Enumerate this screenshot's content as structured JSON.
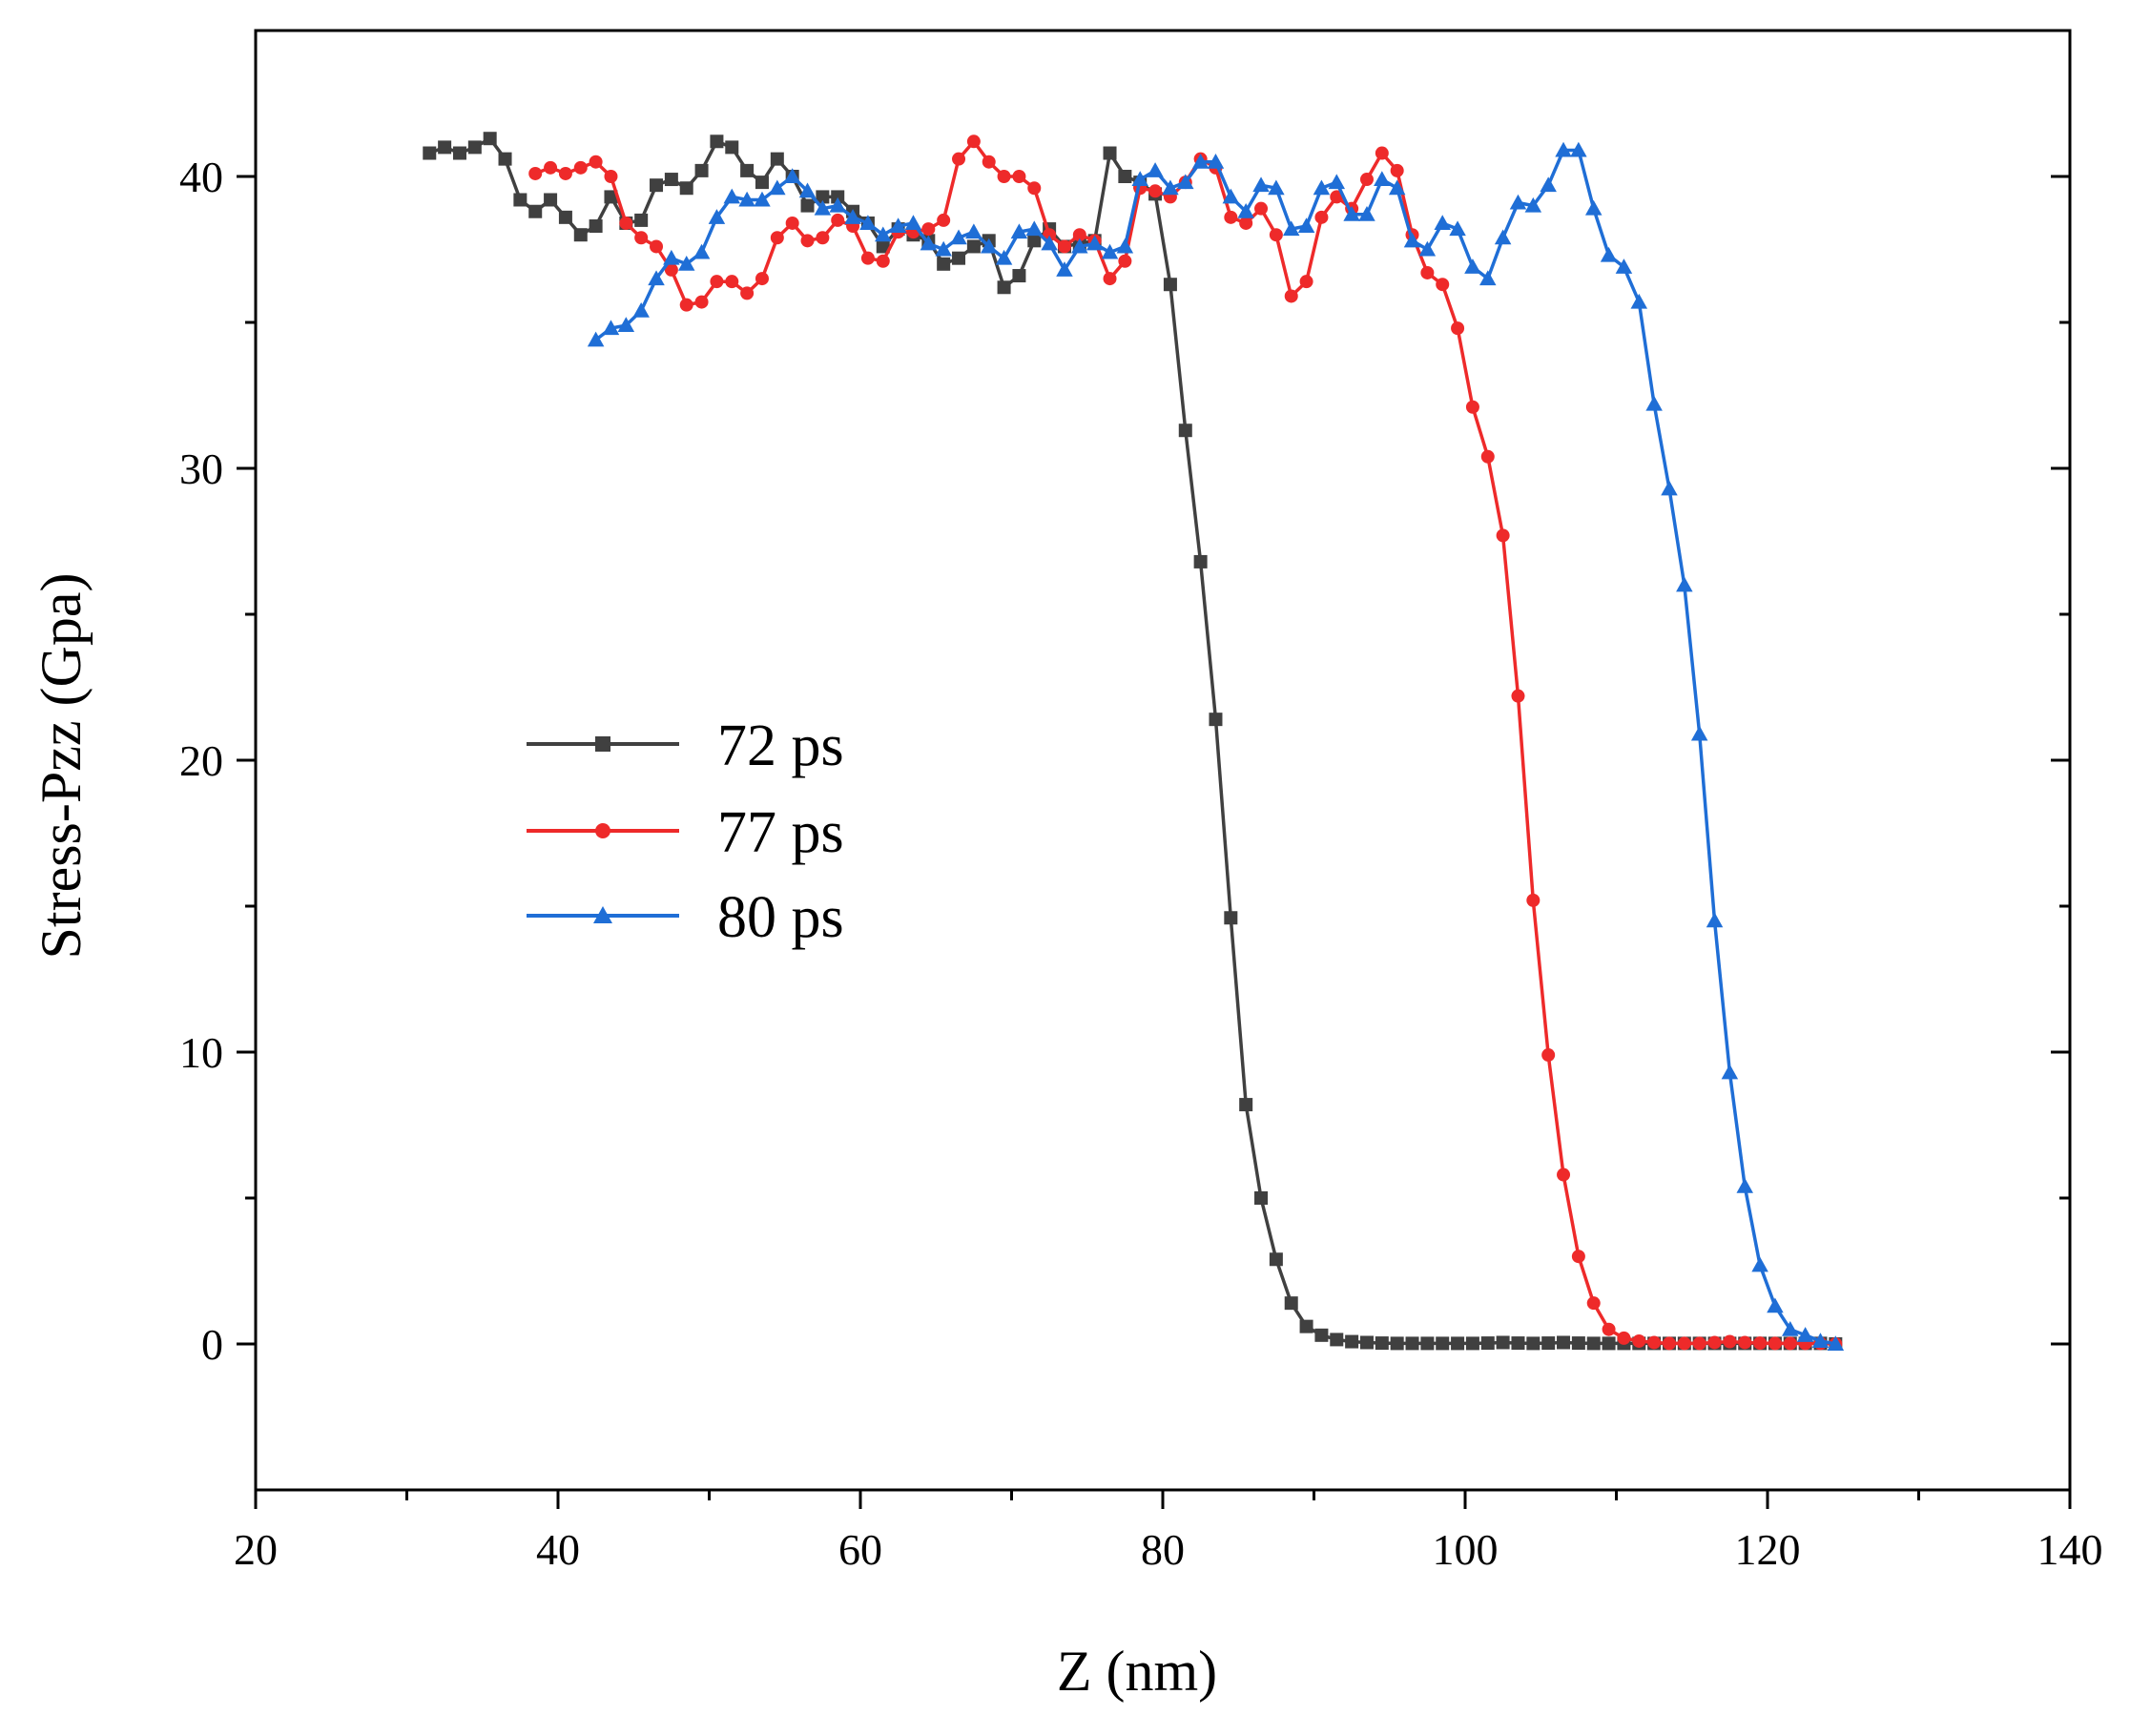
{
  "chart_data": {
    "type": "line",
    "title": "",
    "xlabel": "Z (nm)",
    "ylabel": "Stress-Pzz (Gpa)",
    "xlim": [
      20,
      140
    ],
    "ylim": [
      -5,
      45
    ],
    "x_ticks": [
      20,
      40,
      60,
      80,
      100,
      120,
      140
    ],
    "y_ticks": [
      0,
      10,
      20,
      30,
      40
    ],
    "x_tick_labels": [
      "20",
      "40",
      "60",
      "80",
      "100",
      "120",
      "140"
    ],
    "y_tick_labels": [
      "0",
      "10",
      "20",
      "30",
      "40"
    ],
    "x_minor_step": 10,
    "y_minor_step": 5,
    "grid": false,
    "legend_position": "center-left",
    "series": [
      {
        "name": "72 ps",
        "color": "#404040",
        "marker": "square",
        "x": [
          31.5,
          32.5,
          33.5,
          34.5,
          35.5,
          36.5,
          37.5,
          38.5,
          39.5,
          40.5,
          41.5,
          42.5,
          43.5,
          44.5,
          45.5,
          46.5,
          47.5,
          48.5,
          49.5,
          50.5,
          51.5,
          52.5,
          53.5,
          54.5,
          55.5,
          56.5,
          57.5,
          58.5,
          59.5,
          60.5,
          61.5,
          62.5,
          63.5,
          64.5,
          65.5,
          66.5,
          67.5,
          68.5,
          69.5,
          70.5,
          71.5,
          72.5,
          73.5,
          74.5,
          75.5,
          76.5,
          77.5,
          78.5,
          79.5,
          80.5,
          81.5,
          82.5,
          83.5,
          84.5,
          85.5,
          86.5,
          87.5,
          88.5,
          89.5,
          90.5,
          91.5,
          92.5,
          93.5,
          94.5,
          95.5,
          96.5,
          97.5,
          98.5,
          99.5,
          100.5,
          101.5,
          102.5,
          103.5,
          104.5,
          105.5,
          106.5,
          107.5,
          108.5,
          109.5,
          110.5,
          111.5,
          112.5,
          113.5,
          114.5,
          115.5,
          116.5,
          117.5,
          118.5,
          119.5,
          120.5,
          121.5,
          122.5,
          123.5,
          124.5
        ],
        "y": [
          40.8,
          41.0,
          40.8,
          41.0,
          41.3,
          40.6,
          39.2,
          38.8,
          39.2,
          38.6,
          38.0,
          38.3,
          39.3,
          38.4,
          38.5,
          39.7,
          39.9,
          39.6,
          40.2,
          41.2,
          41.0,
          40.2,
          39.8,
          40.6,
          40.0,
          39.0,
          39.3,
          39.3,
          38.8,
          38.4,
          37.6,
          38.2,
          38.0,
          37.8,
          37.0,
          37.2,
          37.6,
          37.8,
          36.2,
          36.6,
          37.8,
          38.2,
          37.6,
          37.7,
          37.8,
          40.8,
          40.0,
          39.8,
          39.4,
          36.3,
          31.3,
          26.8,
          21.4,
          14.6,
          8.2,
          5.0,
          2.9,
          1.4,
          0.6,
          0.3,
          0.15,
          0.08,
          0.05,
          0.03,
          0.02,
          0.02,
          0.02,
          0.02,
          0.02,
          0.02,
          0.03,
          0.05,
          0.03,
          0.02,
          0.03,
          0.05,
          0.03,
          0.02,
          0.02,
          0.02,
          0.02,
          0.02,
          0.02,
          0.02,
          0.02,
          0.02,
          0.02,
          0.02,
          0.02,
          0.02,
          0.02,
          0.02,
          0.02,
          0.0
        ]
      },
      {
        "name": "77 ps",
        "color": "#ee2a2a",
        "marker": "circle",
        "x": [
          38.5,
          39.5,
          40.5,
          41.5,
          42.5,
          43.5,
          44.5,
          45.5,
          46.5,
          47.5,
          48.5,
          49.5,
          50.5,
          51.5,
          52.5,
          53.5,
          54.5,
          55.5,
          56.5,
          57.5,
          58.5,
          59.5,
          60.5,
          61.5,
          62.5,
          63.5,
          64.5,
          65.5,
          66.5,
          67.5,
          68.5,
          69.5,
          70.5,
          71.5,
          72.5,
          73.5,
          74.5,
          75.5,
          76.5,
          77.5,
          78.5,
          79.5,
          80.5,
          81.5,
          82.5,
          83.5,
          84.5,
          85.5,
          86.5,
          87.5,
          88.5,
          89.5,
          90.5,
          91.5,
          92.5,
          93.5,
          94.5,
          95.5,
          96.5,
          97.5,
          98.5,
          99.5,
          100.5,
          101.5,
          102.5,
          103.5,
          104.5,
          105.5,
          106.5,
          107.5,
          108.5,
          109.5,
          110.5,
          111.5,
          112.5,
          113.5,
          114.5,
          115.5,
          116.5,
          117.5,
          118.5,
          119.5,
          120.5,
          121.5,
          122.5,
          123.5,
          124.5
        ],
        "y": [
          40.1,
          40.3,
          40.1,
          40.3,
          40.5,
          40.0,
          38.4,
          37.9,
          37.6,
          36.8,
          35.6,
          35.7,
          36.4,
          36.4,
          36.0,
          36.5,
          37.9,
          38.4,
          37.8,
          37.9,
          38.5,
          38.3,
          37.2,
          37.1,
          38.1,
          38.1,
          38.2,
          38.5,
          40.6,
          41.2,
          40.5,
          40.0,
          40.0,
          39.6,
          38.0,
          37.6,
          38.0,
          37.8,
          36.5,
          37.1,
          39.6,
          39.5,
          39.3,
          39.8,
          40.6,
          40.3,
          38.6,
          38.4,
          38.9,
          38.0,
          35.9,
          36.4,
          38.6,
          39.3,
          38.9,
          39.9,
          40.8,
          40.2,
          38.0,
          36.7,
          36.3,
          34.8,
          32.1,
          30.4,
          27.7,
          22.2,
          15.2,
          9.9,
          5.8,
          3.0,
          1.4,
          0.5,
          0.2,
          0.1,
          0.05,
          0.02,
          0.02,
          0.02,
          0.05,
          0.08,
          0.05,
          0.03,
          0.02,
          0.02,
          0.02,
          0.02,
          0.0
        ]
      },
      {
        "name": "80 ps",
        "color": "#1f6ed6",
        "marker": "triangle",
        "x": [
          42.5,
          43.5,
          44.5,
          45.5,
          46.5,
          47.5,
          48.5,
          49.5,
          50.5,
          51.5,
          52.5,
          53.5,
          54.5,
          55.5,
          56.5,
          57.5,
          58.5,
          59.5,
          60.5,
          61.5,
          62.5,
          63.5,
          64.5,
          65.5,
          66.5,
          67.5,
          68.5,
          69.5,
          70.5,
          71.5,
          72.5,
          73.5,
          74.5,
          75.5,
          76.5,
          77.5,
          78.5,
          79.5,
          80.5,
          81.5,
          82.5,
          83.5,
          84.5,
          85.5,
          86.5,
          87.5,
          88.5,
          89.5,
          90.5,
          91.5,
          92.5,
          93.5,
          94.5,
          95.5,
          96.5,
          97.5,
          98.5,
          99.5,
          100.5,
          101.5,
          102.5,
          103.5,
          104.5,
          105.5,
          106.5,
          107.5,
          108.5,
          109.5,
          110.5,
          111.5,
          112.5,
          113.5,
          114.5,
          115.5,
          116.5,
          117.5,
          118.5,
          119.5,
          120.5,
          121.5,
          122.5,
          123.5,
          124.5
        ],
        "y": [
          34.4,
          34.8,
          34.9,
          35.4,
          36.5,
          37.2,
          37.0,
          37.4,
          38.6,
          39.3,
          39.2,
          39.2,
          39.6,
          40.0,
          39.5,
          38.9,
          39.0,
          38.6,
          38.4,
          38.0,
          38.3,
          38.4,
          37.7,
          37.5,
          37.9,
          38.1,
          37.6,
          37.2,
          38.1,
          38.2,
          37.7,
          36.8,
          37.6,
          37.7,
          37.4,
          37.6,
          39.9,
          40.2,
          39.6,
          39.8,
          40.5,
          40.5,
          39.3,
          38.8,
          39.7,
          39.6,
          38.2,
          38.3,
          39.6,
          39.8,
          38.7,
          38.7,
          39.9,
          39.6,
          37.8,
          37.5,
          38.4,
          38.2,
          36.9,
          36.5,
          37.9,
          39.1,
          39.0,
          39.7,
          40.9,
          40.9,
          38.9,
          37.3,
          36.9,
          35.7,
          32.2,
          29.3,
          26.0,
          20.9,
          14.5,
          9.3,
          5.4,
          2.7,
          1.3,
          0.5,
          0.3,
          0.1,
          0.0
        ]
      }
    ]
  }
}
